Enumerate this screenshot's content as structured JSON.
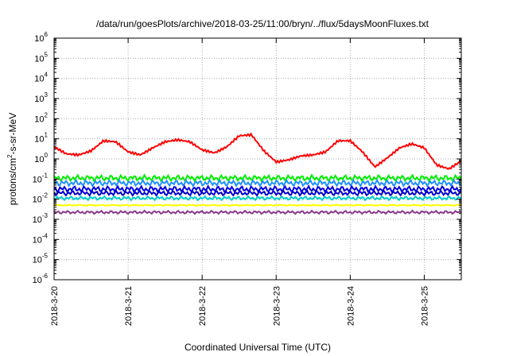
{
  "chart_data": {
    "type": "line",
    "title": "/data/run/goesPlots/archive/2018-03-25/11:00/bryn/../flux/5daysMoonFluxes.txt",
    "xlabel": "Coordinated Universal Time (UTC)",
    "ylabel": {
      "prefix": "protons/cm",
      "sup": "2",
      "suffix": "-s-sr-MeV"
    },
    "y_scale": "log",
    "ylim": [
      1e-06,
      1000000.0
    ],
    "y_ticks": [
      {
        "value": -6,
        "base": "10",
        "exp": "-6"
      },
      {
        "value": -5,
        "base": "10",
        "exp": "-5"
      },
      {
        "value": -4,
        "base": "10",
        "exp": "-4"
      },
      {
        "value": -3,
        "base": "10",
        "exp": "-3"
      },
      {
        "value": -2,
        "base": "10",
        "exp": "-2"
      },
      {
        "value": -1,
        "base": "10",
        "exp": "-1"
      },
      {
        "value": 0,
        "base": "10",
        "exp": "0"
      },
      {
        "value": 1,
        "base": "10",
        "exp": "1"
      },
      {
        "value": 2,
        "base": "10",
        "exp": "2"
      },
      {
        "value": 3,
        "base": "10",
        "exp": "3"
      },
      {
        "value": 4,
        "base": "10",
        "exp": "4"
      },
      {
        "value": 5,
        "base": "10",
        "exp": "5"
      },
      {
        "value": 6,
        "base": "10",
        "exp": "6"
      }
    ],
    "x_range_days": [
      "2018-03-20",
      "2018-03-25T12:00"
    ],
    "x_ticks": [
      "2018-3-20",
      "2018-3-21",
      "2018-3-22",
      "2018-3-23",
      "2018-3-24",
      "2018-3-25"
    ],
    "grid": true,
    "series": [
      {
        "color": "#ff0000",
        "x": [
          "3-20 00:00",
          "3-20 04:00",
          "3-20 08:00",
          "3-20 12:00",
          "3-20 16:00",
          "3-20 20:00",
          "3-21 00:00",
          "3-21 04:00",
          "3-21 08:00",
          "3-21 12:00",
          "3-21 16:00",
          "3-21 20:00",
          "3-22 00:00",
          "3-22 04:00",
          "3-22 08:00",
          "3-22 12:00",
          "3-22 16:00",
          "3-22 20:00",
          "3-23 00:00",
          "3-23 04:00",
          "3-23 08:00",
          "3-23 12:00",
          "3-23 16:00",
          "3-23 20:00",
          "3-24 00:00",
          "3-24 04:00",
          "3-24 08:00",
          "3-24 12:00",
          "3-24 16:00",
          "3-24 20:00",
          "3-25 00:00",
          "3-25 04:00",
          "3-25 08:00",
          "3-25 12:00"
        ],
        "log10": [
          0.6,
          0.25,
          0.2,
          0.4,
          0.9,
          0.85,
          0.35,
          0.2,
          0.55,
          0.85,
          0.95,
          0.85,
          0.45,
          0.3,
          0.6,
          1.15,
          1.2,
          0.4,
          -0.15,
          -0.05,
          0.15,
          0.2,
          0.35,
          0.9,
          0.9,
          0.35,
          -0.4,
          0.05,
          0.55,
          0.75,
          0.55,
          -0.3,
          -0.5,
          -0.1
        ]
      },
      {
        "color": "#00ee00",
        "level": -0.95,
        "amp": 0.15
      },
      {
        "color": "#1e90ff",
        "level": -1.2,
        "amp": 0.15
      },
      {
        "color": "#0000dd",
        "level": -1.5,
        "amp": 0.15
      },
      {
        "color": "#0000cd",
        "level": -1.7,
        "amp": 0.12
      },
      {
        "color": "#00cccc",
        "level": -1.95,
        "amp": 0.1
      },
      {
        "color": "#ffff00",
        "level": -2.3,
        "amp": 0.03
      },
      {
        "color": "#8b3a8b",
        "level": -2.65,
        "amp": 0.08
      }
    ]
  }
}
